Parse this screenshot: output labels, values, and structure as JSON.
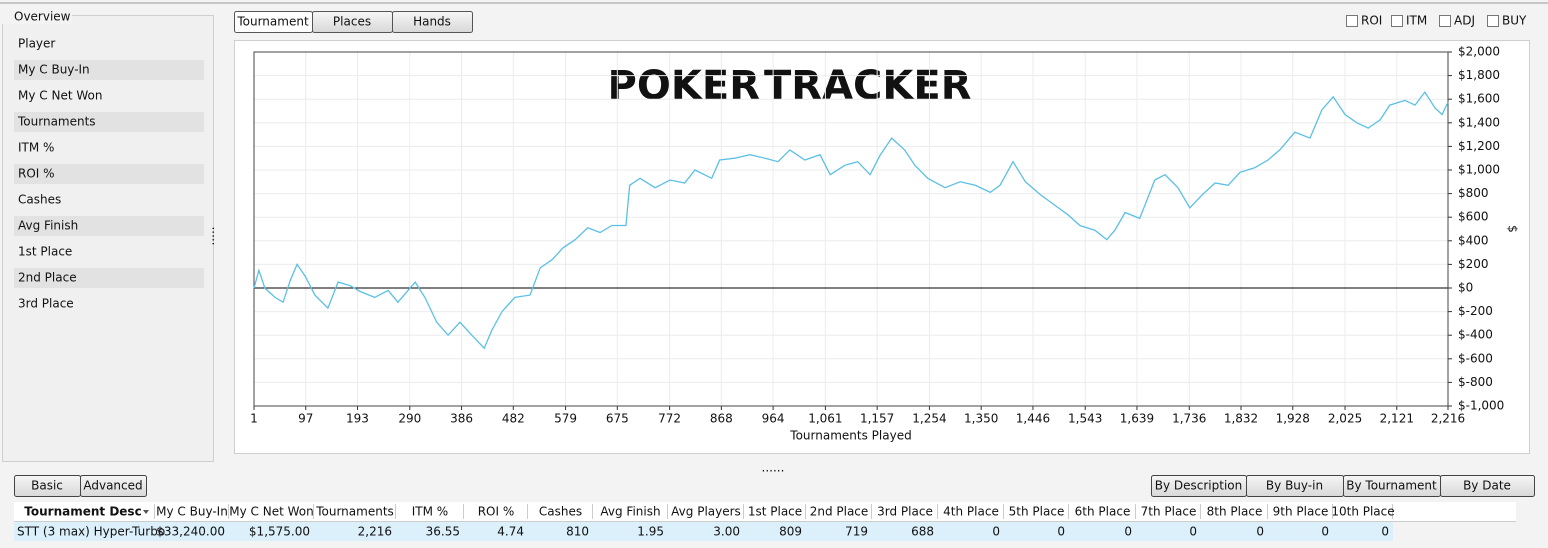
{
  "sidebar": {
    "title": "Overview",
    "items": [
      "Player",
      "My C Buy-In",
      "My C Net Won",
      "Tournaments",
      "ITM %",
      "ROI %",
      "Cashes",
      "Avg Finish",
      "1st Place",
      "2nd Place",
      "3rd Place"
    ]
  },
  "tabs": [
    "Tournament",
    "Places",
    "Hands"
  ],
  "checkboxes": [
    "ROI",
    "ITM",
    "ADJ",
    "BUY"
  ],
  "chart_data": {
    "type": "line",
    "watermark": [
      "POKER",
      "TRACKER"
    ],
    "x_label": "Tournaments Played",
    "y_label": "$",
    "color": "#5bc0e6",
    "grid": true,
    "zero_line": true,
    "x": [
      1,
      10,
      21,
      40,
      55,
      68,
      81,
      96,
      114,
      138,
      157,
      179,
      198,
      225,
      250,
      268,
      300,
      318,
      340,
      361,
      383,
      405,
      428,
      442,
      461,
      485,
      513,
      532,
      554,
      574,
      597,
      620,
      643,
      665,
      691,
      698,
      717,
      745,
      773,
      800,
      819,
      850,
      865,
      893,
      921,
      949,
      973,
      995,
      1023,
      1051,
      1070,
      1097,
      1121,
      1144,
      1163,
      1184,
      1208,
      1227,
      1251,
      1283,
      1311,
      1339,
      1367,
      1385,
      1409,
      1432,
      1460,
      1487,
      1511,
      1533,
      1561,
      1583,
      1598,
      1617,
      1644,
      1672,
      1691,
      1715,
      1737,
      1760,
      1784,
      1808,
      1830,
      1858,
      1882,
      1904,
      1932,
      1960,
      1982,
      2003,
      2025,
      2047,
      2068,
      2090,
      2108,
      2136,
      2155,
      2173,
      2192,
      2205,
      2216
    ],
    "values": [
      0,
      150,
      0,
      -80,
      -120,
      60,
      200,
      100,
      -60,
      -170,
      50,
      20,
      -30,
      -80,
      -20,
      -120,
      50,
      -80,
      -290,
      -400,
      -290,
      -400,
      -510,
      -360,
      -200,
      -80,
      -60,
      170,
      240,
      340,
      410,
      510,
      470,
      530,
      530,
      870,
      930,
      850,
      915,
      890,
      1000,
      930,
      1085,
      1100,
      1130,
      1100,
      1070,
      1170,
      1085,
      1130,
      960,
      1040,
      1070,
      960,
      1130,
      1270,
      1170,
      1040,
      930,
      850,
      900,
      870,
      810,
      870,
      1070,
      900,
      790,
      700,
      620,
      530,
      490,
      410,
      490,
      640,
      590,
      915,
      960,
      850,
      680,
      790,
      890,
      870,
      980,
      1020,
      1085,
      1170,
      1320,
      1270,
      1510,
      1620,
      1470,
      1400,
      1355,
      1425,
      1550,
      1590,
      1550,
      1660,
      1525,
      1470,
      1575
    ],
    "xlim": [
      1,
      2216
    ],
    "xticks": [
      1,
      97,
      193,
      290,
      386,
      482,
      579,
      675,
      772,
      868,
      964,
      {
        "value": 1061,
        "label": "1,061"
      },
      {
        "value": 1157,
        "label": "1,157"
      },
      {
        "value": 1254,
        "label": "1,254"
      },
      {
        "value": 1350,
        "label": "1,350"
      },
      {
        "value": 1446,
        "label": "1,446"
      },
      {
        "value": 1543,
        "label": "1,543"
      },
      {
        "value": 1639,
        "label": "1,639"
      },
      {
        "value": 1736,
        "label": "1,736"
      },
      {
        "value": 1832,
        "label": "1,832"
      },
      {
        "value": 1928,
        "label": "1,928"
      },
      {
        "value": 2025,
        "label": "2,025"
      },
      {
        "value": 2121,
        "label": "2,121"
      },
      {
        "value": 2216,
        "label": "2,216"
      }
    ],
    "ylim": [
      -1000,
      2000
    ],
    "yticks": [
      {
        "value": -1000,
        "label": "$-1,000"
      },
      {
        "value": -800,
        "label": "$-800"
      },
      {
        "value": -600,
        "label": "$-600"
      },
      {
        "value": -400,
        "label": "$-400"
      },
      {
        "value": -200,
        "label": "$-200"
      },
      {
        "value": 0,
        "label": "$0"
      },
      {
        "value": 200,
        "label": "$200"
      },
      {
        "value": 400,
        "label": "$400"
      },
      {
        "value": 600,
        "label": "$600"
      },
      {
        "value": 800,
        "label": "$800"
      },
      {
        "value": 1000,
        "label": "$1,000"
      },
      {
        "value": 1200,
        "label": "$1,200"
      },
      {
        "value": 1400,
        "label": "$1,400"
      },
      {
        "value": 1600,
        "label": "$1,600"
      },
      {
        "value": 1800,
        "label": "$1,800"
      },
      {
        "value": 2000,
        "label": "$2,000"
      }
    ]
  },
  "view_buttons": [
    "Basic",
    "Advanced"
  ],
  "group_buttons": [
    "By Description",
    "By Buy-in",
    "By Tournament",
    "By Date"
  ],
  "table": {
    "columns": [
      "Tournament Desc",
      "My C Buy-In",
      "My C Net Won",
      "Tournaments",
      "ITM %",
      "ROI %",
      "Cashes",
      "Avg Finish",
      "Avg Players",
      "1st Place",
      "2nd Place",
      "3rd Place",
      "4th Place",
      "5th Place",
      "6th Place",
      "7th Place",
      "8th Place",
      "9th Place",
      "10th Place"
    ],
    "rows": [
      [
        "STT (3 max) Hyper-Turbo",
        "$33,240.00",
        "$1,575.00",
        "2,216",
        "36.55",
        "4.74",
        "810",
        "1.95",
        "3.00",
        "809",
        "719",
        "688",
        "0",
        "0",
        "0",
        "0",
        "0",
        "0",
        "0"
      ]
    ]
  }
}
